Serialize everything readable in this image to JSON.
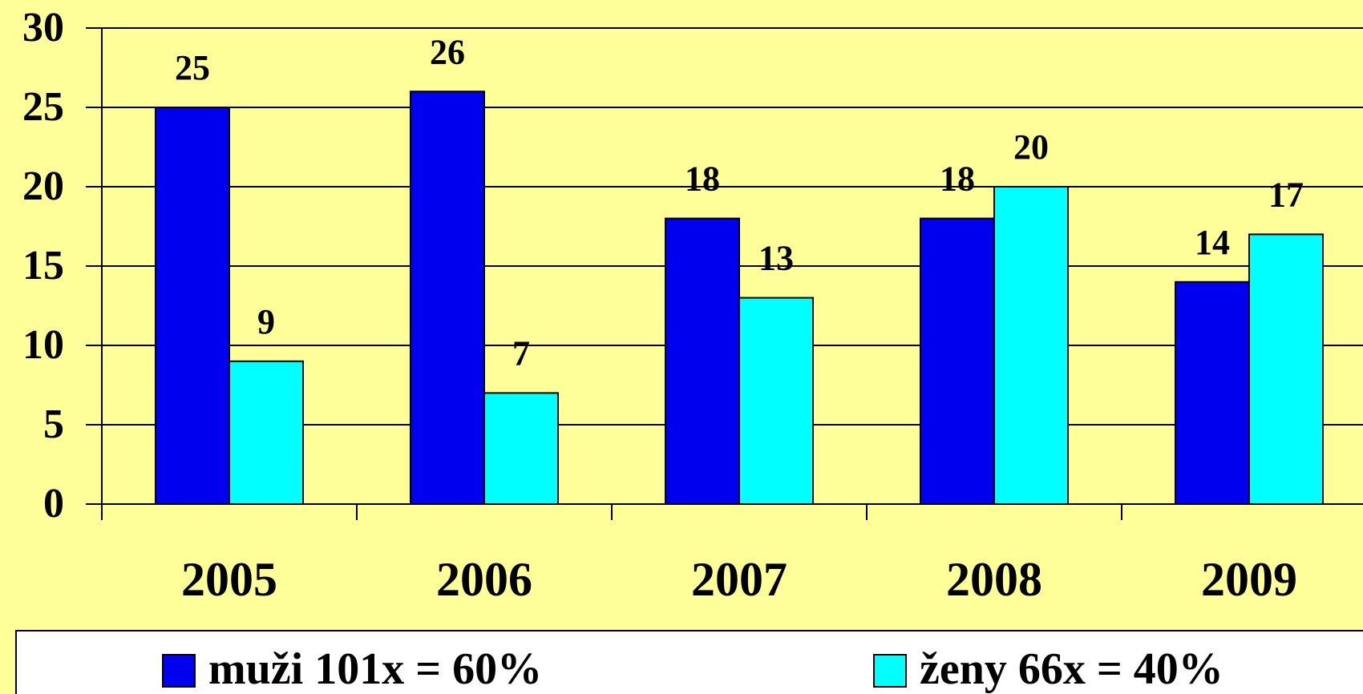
{
  "chart_data": {
    "type": "bar",
    "categories": [
      "2005",
      "2006",
      "2007",
      "2008",
      "2009"
    ],
    "series": [
      {
        "name": "muži 101x = 60%",
        "color": "#0000ee",
        "values": [
          25,
          26,
          18,
          18,
          14
        ]
      },
      {
        "name": "ženy 66x = 40%",
        "color": "#00ffff",
        "values": [
          9,
          7,
          13,
          20,
          17
        ]
      }
    ],
    "ylim": [
      0,
      30
    ],
    "yticks": [
      0,
      5,
      10,
      15,
      20,
      25,
      30
    ],
    "grid": true,
    "legend": "bottom"
  }
}
